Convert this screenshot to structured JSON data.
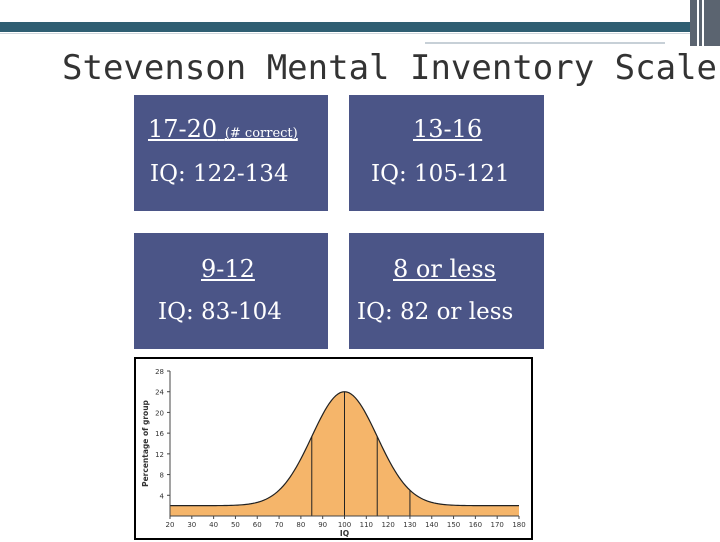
{
  "title": "Stevenson Mental Inventory Scale",
  "boxes": [
    {
      "range": "17-20",
      "note": "(# correct)",
      "iq": "IQ:  122-134"
    },
    {
      "range": "13-16",
      "note": "",
      "iq": "IQ:  105-121"
    },
    {
      "range": "9-12",
      "note": "",
      "iq": "IQ:  83-104"
    },
    {
      "range": "8 or less",
      "note": "",
      "iq": "IQ:  82 or less"
    }
  ],
  "colors": {
    "box": "#4b5587",
    "band": "#2f5e72",
    "curve": "#f5b56a"
  },
  "chart_data": {
    "type": "area",
    "ylabel": "Percentage of group",
    "xlabel": "IQ",
    "x_ticks": [
      20,
      30,
      40,
      50,
      60,
      70,
      80,
      90,
      100,
      110,
      120,
      130,
      140,
      150,
      160,
      170,
      180
    ],
    "y_ticks": [
      4,
      8,
      12,
      16,
      20,
      24,
      28
    ],
    "xlim": [
      20,
      180
    ],
    "ylim": [
      0,
      28
    ],
    "mean": 100,
    "sd": 15,
    "peak": 24,
    "baseline": 2,
    "markers": [
      85,
      100,
      115,
      130
    ],
    "grid": false
  }
}
